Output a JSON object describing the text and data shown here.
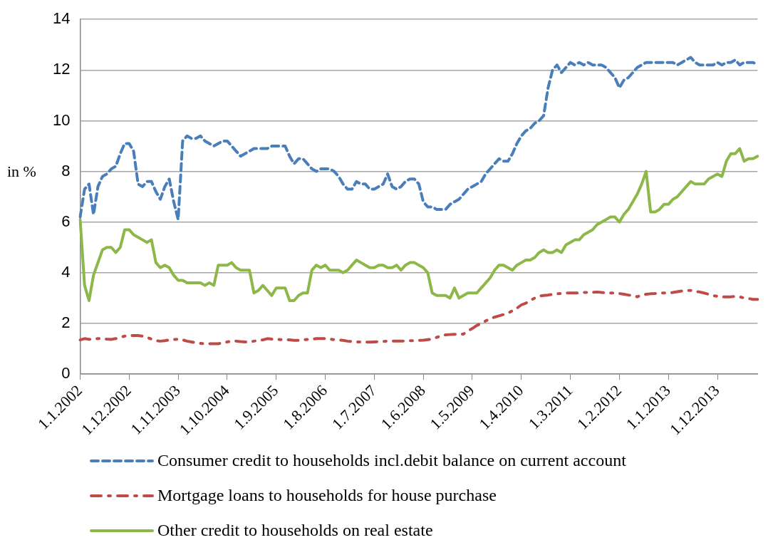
{
  "chart_data": {
    "type": "line",
    "ylabel": "in %",
    "ylim": [
      0,
      14
    ],
    "yticks": [
      0,
      2,
      4,
      6,
      8,
      10,
      12,
      14
    ],
    "grid": "y",
    "legend": "bottom",
    "marker": "none",
    "categories": [
      "1.1.2002",
      null,
      null,
      null,
      null,
      null,
      null,
      null,
      null,
      null,
      null,
      "1.12.2002",
      null,
      null,
      null,
      null,
      null,
      null,
      null,
      null,
      null,
      null,
      "1.11.2003",
      null,
      null,
      null,
      null,
      null,
      null,
      null,
      null,
      null,
      null,
      "1.10.2004",
      null,
      null,
      null,
      null,
      null,
      null,
      null,
      null,
      null,
      null,
      "1.9.2005",
      null,
      null,
      null,
      null,
      null,
      null,
      null,
      null,
      null,
      null,
      "1.8.2006",
      null,
      null,
      null,
      null,
      null,
      null,
      null,
      null,
      null,
      null,
      "1.7.2007",
      null,
      null,
      null,
      null,
      null,
      null,
      null,
      null,
      null,
      null,
      "1.6.2008",
      null,
      null,
      null,
      null,
      null,
      null,
      null,
      null,
      null,
      null,
      "1.5.2009",
      null,
      null,
      null,
      null,
      null,
      null,
      null,
      null,
      null,
      null,
      "1.4.2010",
      null,
      null,
      null,
      null,
      null,
      null,
      null,
      null,
      null,
      null,
      "1.3.2011",
      null,
      null,
      null,
      null,
      null,
      null,
      null,
      null,
      null,
      null,
      "1.2.2012",
      null,
      null,
      null,
      null,
      null,
      null,
      null,
      null,
      null,
      null,
      "1.1.2013",
      null,
      null,
      null,
      null,
      null,
      null,
      null,
      null,
      null,
      null,
      "1.12.2013",
      null,
      null,
      null,
      null,
      null,
      null,
      null,
      null,
      null
    ],
    "series": [
      {
        "name": "Consumer credit to households incl.debit balance on current account",
        "color": "#4a7ebb",
        "line_style": "dashed",
        "values": [
          6.2,
          7.3,
          7.5,
          6.3,
          7.4,
          7.8,
          7.9,
          8.1,
          8.2,
          8.7,
          9.1,
          9.1,
          8.8,
          7.5,
          7.4,
          7.6,
          7.6,
          7.2,
          6.9,
          7.4,
          7.7,
          6.8,
          6.1,
          9.2,
          9.4,
          9.3,
          9.3,
          9.4,
          9.2,
          9.1,
          9.0,
          9.1,
          9.2,
          9.2,
          9.0,
          8.8,
          8.6,
          8.7,
          8.8,
          8.9,
          8.9,
          8.9,
          8.9,
          9.0,
          9.0,
          9.0,
          9.0,
          8.6,
          8.3,
          8.5,
          8.5,
          8.3,
          8.1,
          8.0,
          8.1,
          8.1,
          8.1,
          8.0,
          7.8,
          7.5,
          7.3,
          7.3,
          7.6,
          7.5,
          7.5,
          7.3,
          7.3,
          7.4,
          7.5,
          7.9,
          7.4,
          7.3,
          7.4,
          7.6,
          7.7,
          7.7,
          7.5,
          6.8,
          6.6,
          6.6,
          6.5,
          6.5,
          6.5,
          6.7,
          6.8,
          6.9,
          7.1,
          7.3,
          7.4,
          7.5,
          7.6,
          7.9,
          8.1,
          8.3,
          8.5,
          8.4,
          8.4,
          8.7,
          9.1,
          9.4,
          9.6,
          9.7,
          9.9,
          10.0,
          10.2,
          11.3,
          12.0,
          12.2,
          11.9,
          12.1,
          12.3,
          12.2,
          12.3,
          12.2,
          12.3,
          12.2,
          12.2,
          12.2,
          12.1,
          11.9,
          11.7,
          11.3,
          11.6,
          11.7,
          11.9,
          12.1,
          12.2,
          12.3,
          12.3,
          12.3,
          12.3,
          12.3,
          12.3,
          12.3,
          12.2,
          12.3,
          12.4,
          12.5,
          12.3,
          12.2,
          12.2,
          12.2,
          12.2,
          12.3,
          12.2,
          12.3,
          12.3,
          12.4,
          12.2,
          12.3,
          12.3,
          12.3,
          12.2
        ]
      },
      {
        "name": "Mortgage loans to households for house purchase",
        "color": "#be4b48",
        "line_style": "dashdot",
        "values": [
          1.35,
          1.4,
          1.37,
          1.38,
          1.4,
          1.4,
          1.38,
          1.37,
          1.4,
          1.45,
          1.5,
          1.52,
          1.52,
          1.52,
          1.5,
          1.45,
          1.38,
          1.32,
          1.3,
          1.32,
          1.35,
          1.36,
          1.38,
          1.35,
          1.3,
          1.27,
          1.24,
          1.21,
          1.2,
          1.2,
          1.2,
          1.2,
          1.23,
          1.27,
          1.3,
          1.3,
          1.28,
          1.27,
          1.27,
          1.3,
          1.33,
          1.35,
          1.4,
          1.38,
          1.37,
          1.36,
          1.36,
          1.35,
          1.33,
          1.33,
          1.35,
          1.37,
          1.37,
          1.4,
          1.4,
          1.4,
          1.38,
          1.36,
          1.35,
          1.33,
          1.3,
          1.28,
          1.27,
          1.27,
          1.26,
          1.26,
          1.27,
          1.28,
          1.29,
          1.3,
          1.3,
          1.3,
          1.3,
          1.31,
          1.32,
          1.32,
          1.33,
          1.34,
          1.36,
          1.38,
          1.45,
          1.5,
          1.55,
          1.56,
          1.57,
          1.57,
          1.58,
          1.7,
          1.8,
          1.92,
          2.0,
          2.1,
          2.18,
          2.25,
          2.3,
          2.35,
          2.4,
          2.5,
          2.6,
          2.73,
          2.8,
          2.9,
          3.0,
          3.08,
          3.1,
          3.12,
          3.15,
          3.17,
          3.18,
          3.2,
          3.2,
          3.2,
          3.2,
          3.22,
          3.22,
          3.23,
          3.24,
          3.22,
          3.21,
          3.2,
          3.2,
          3.18,
          3.15,
          3.12,
          3.1,
          3.05,
          3.12,
          3.15,
          3.17,
          3.18,
          3.2,
          3.2,
          3.2,
          3.22,
          3.25,
          3.28,
          3.3,
          3.3,
          3.27,
          3.24,
          3.2,
          3.15,
          3.1,
          3.07,
          3.05,
          3.05,
          3.05,
          3.07,
          3.05,
          3.0,
          2.98,
          2.95,
          2.95
        ]
      },
      {
        "name": "Other credit to households on real estate",
        "color": "#8db849",
        "line_style": "solid",
        "values": [
          6.1,
          3.5,
          2.9,
          3.9,
          4.4,
          4.9,
          5.0,
          5.0,
          4.8,
          5.0,
          5.7,
          5.7,
          5.5,
          5.4,
          5.3,
          5.2,
          5.3,
          4.4,
          4.2,
          4.3,
          4.2,
          3.9,
          3.7,
          3.7,
          3.6,
          3.6,
          3.6,
          3.6,
          3.5,
          3.6,
          3.5,
          4.3,
          4.3,
          4.3,
          4.4,
          4.2,
          4.1,
          4.1,
          4.1,
          3.2,
          3.3,
          3.5,
          3.3,
          3.1,
          3.4,
          3.4,
          3.4,
          2.9,
          2.9,
          3.1,
          3.2,
          3.2,
          4.1,
          4.3,
          4.2,
          4.3,
          4.1,
          4.1,
          4.1,
          4.0,
          4.1,
          4.3,
          4.5,
          4.4,
          4.3,
          4.2,
          4.2,
          4.3,
          4.3,
          4.2,
          4.2,
          4.3,
          4.1,
          4.3,
          4.4,
          4.4,
          4.3,
          4.2,
          4.0,
          3.2,
          3.1,
          3.1,
          3.1,
          3.0,
          3.4,
          3.0,
          3.1,
          3.2,
          3.2,
          3.2,
          3.4,
          3.6,
          3.8,
          4.1,
          4.3,
          4.3,
          4.2,
          4.1,
          4.3,
          4.4,
          4.5,
          4.5,
          4.6,
          4.8,
          4.9,
          4.8,
          4.8,
          4.9,
          4.8,
          5.1,
          5.2,
          5.3,
          5.3,
          5.5,
          5.6,
          5.7,
          5.9,
          6.0,
          6.1,
          6.2,
          6.2,
          6.0,
          6.3,
          6.5,
          6.8,
          7.1,
          7.5,
          8.0,
          6.4,
          6.4,
          6.5,
          6.7,
          6.7,
          6.9,
          7.0,
          7.2,
          7.4,
          7.6,
          7.5,
          7.5,
          7.5,
          7.7,
          7.8,
          7.9,
          7.8,
          8.4,
          8.7,
          8.7,
          8.9,
          8.4,
          8.5,
          8.5,
          8.6
        ]
      }
    ]
  }
}
